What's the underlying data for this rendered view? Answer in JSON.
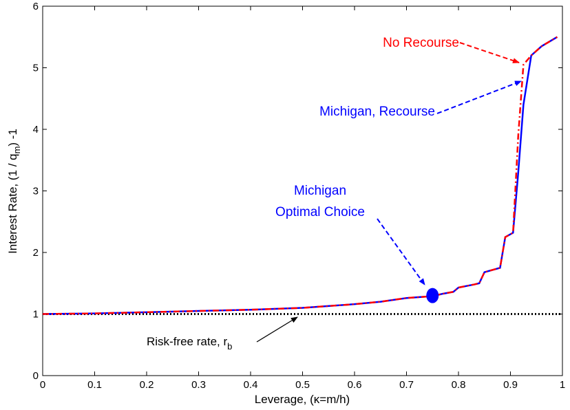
{
  "chart_data": {
    "type": "line",
    "xlabel": "Leverage, (κ=m/h)",
    "ylabel": [
      "Interest Rate, (1 / q",
      "m",
      ") -1"
    ],
    "x": [
      0,
      0.1,
      0.2,
      0.3,
      0.4,
      0.5,
      0.6,
      0.65,
      0.7,
      0.75,
      0.77,
      0.79,
      0.8,
      0.83,
      0.84,
      0.85,
      0.88,
      0.89,
      0.905,
      0.915,
      0.925,
      0.94,
      0.96,
      0.99
    ],
    "series": [
      {
        "name": "Michigan, Recourse",
        "color": "#0000ff",
        "style": "solid",
        "values": [
          1.0,
          1.01,
          1.03,
          1.05,
          1.07,
          1.1,
          1.16,
          1.2,
          1.26,
          1.29,
          1.33,
          1.36,
          1.43,
          1.48,
          1.5,
          1.68,
          1.75,
          2.25,
          2.32,
          3.3,
          4.4,
          5.2,
          5.35,
          5.5
        ]
      },
      {
        "name": "No Recourse",
        "color": "#ff0000",
        "style": "dashdot",
        "values": [
          1.0,
          1.01,
          1.03,
          1.05,
          1.07,
          1.1,
          1.16,
          1.2,
          1.26,
          1.29,
          1.33,
          1.36,
          1.43,
          1.48,
          1.5,
          1.68,
          1.75,
          2.25,
          2.32,
          3.9,
          5.05,
          5.2,
          5.35,
          5.5
        ]
      }
    ],
    "point": {
      "x": 0.75,
      "y": 1.3,
      "color": "#0000ff",
      "label": [
        "Michigan",
        "Optimal Choice"
      ]
    },
    "hline": {
      "value": 1,
      "label": "Risk-free rate, r",
      "label_sub": "b"
    },
    "xlim": [
      0,
      1
    ],
    "ylim": [
      0,
      6
    ],
    "xticks": [
      0,
      0.1,
      0.2,
      0.3,
      0.4,
      0.5,
      0.6,
      0.7,
      0.8,
      0.9,
      1
    ],
    "yticks": [
      0,
      1,
      2,
      3,
      4,
      5,
      6
    ]
  }
}
